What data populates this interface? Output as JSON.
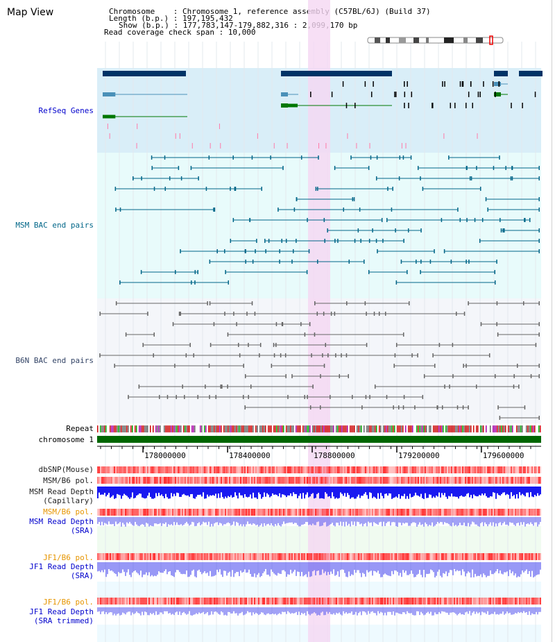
{
  "title": "Map View",
  "header": {
    "chromosome_line": "Chromosome    : Chromosome 1, reference assembly (C57BL/6J) (Build 37)",
    "length_line": "Length (b.p.) : 197,195,432",
    "show_line": "Show (b.p.) : 177,783,147-179,882,316 : 2,099,170 bp",
    "coverage_line": "Read coverage check span : 10,000"
  },
  "tracks": {
    "refseq": "RefSeq Genes",
    "msm_bac": "MSM BAC end pairs",
    "b6n_bac": "B6N BAC end pairs",
    "repeat": "Repeat",
    "chromosome": "chromosome 1",
    "dbsnp": "dbSNP(Mouse)",
    "msm_b6_pol": "MSM/B6 pol.",
    "msm_read_depth_cap_1": "MSM Read Depth",
    "msm_read_depth_cap_2": "(Capillary)",
    "msm_b6_pol_2": "MSM/B6 pol.",
    "msm_read_depth_sra_1": "MSM Read Depth",
    "msm_read_depth_sra_2": "(SRA)",
    "jf1_b6_pol_1": "JF1/B6 pol.",
    "jf1_read_depth_sra_1": "JF1 Read Depth",
    "jf1_read_depth_sra_2": "(SRA)",
    "jf1_b6_pol_2": "JF1/B6 pol.",
    "jf1_read_depth_trim_1": "JF1 Read Depth",
    "jf1_read_depth_trim_2": "(SRA trimmed)"
  },
  "axis": {
    "ticks": [
      "178000000",
      "178400000",
      "178800000",
      "179200000",
      "179600000"
    ],
    "tick_values": [
      178000000,
      178400000,
      178800000,
      179200000,
      179600000
    ],
    "range": [
      177783147,
      179882316
    ]
  },
  "colors": {
    "refseq_bg": "#d9eef8",
    "msm_bg": "#e8fbfb",
    "b6n_bg": "#f4f6fa",
    "highlight": "#f5d7f2",
    "chromosome": "#006600",
    "msm_pair": "#006688",
    "b6n_pair": "#666666",
    "snp_red": "#ff3030",
    "depth_blue": "#0000ee"
  }
}
